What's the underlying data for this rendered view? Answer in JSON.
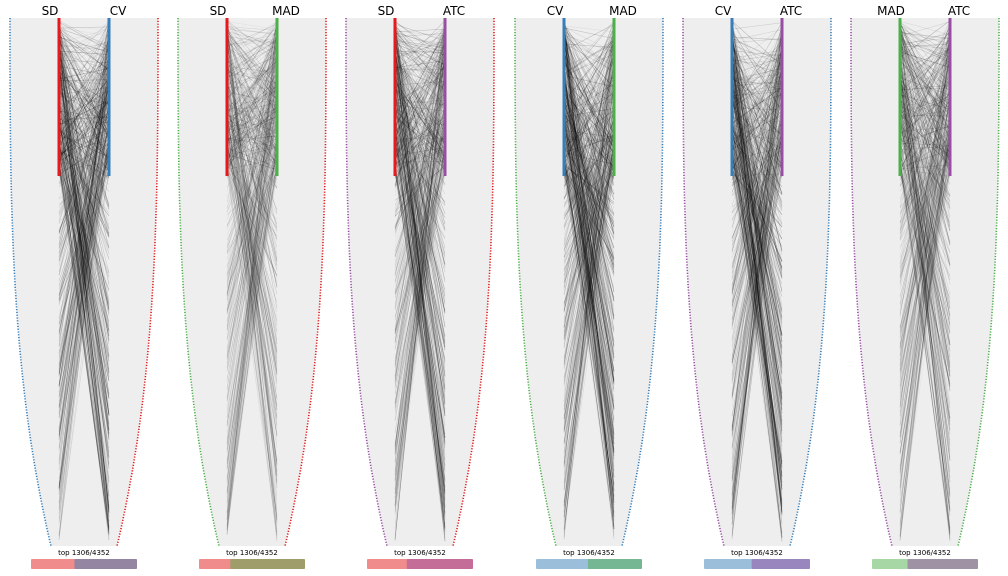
{
  "colors": {
    "SD": "#e41a1c",
    "CV": "#377eb8",
    "MAD": "#4daf4a",
    "ATC": "#984ea3",
    "background_shape": "#eeeeee",
    "lines": "#000000"
  },
  "chart_data": [
    {
      "type": "parallel-rank",
      "left": "SD",
      "right": "CV",
      "selection_label": "top 1306/4352",
      "top_n": 1306,
      "total": 4352,
      "line_intensity": 0.95,
      "overlap_fraction": 0.18
    },
    {
      "type": "parallel-rank",
      "left": "SD",
      "right": "MAD",
      "selection_label": "top 1306/4352",
      "top_n": 1306,
      "total": 4352,
      "line_intensity": 0.55,
      "overlap_fraction": 0.41
    },
    {
      "type": "parallel-rank",
      "left": "SD",
      "right": "ATC",
      "selection_label": "top 1306/4352",
      "top_n": 1306,
      "total": 4352,
      "line_intensity": 0.8,
      "overlap_fraction": 0.25
    },
    {
      "type": "parallel-rank",
      "left": "CV",
      "right": "MAD",
      "selection_label": "top 1306/4352",
      "top_n": 1306,
      "total": 4352,
      "line_intensity": 1.0,
      "overlap_fraction": 0.02
    },
    {
      "type": "parallel-rank",
      "left": "CV",
      "right": "ATC",
      "selection_label": "top 1306/4352",
      "top_n": 1306,
      "total": 4352,
      "line_intensity": 0.95,
      "overlap_fraction": 0.1
    },
    {
      "type": "parallel-rank",
      "left": "MAD",
      "right": "ATC",
      "selection_label": "top 1306/4352",
      "top_n": 1306,
      "total": 4352,
      "line_intensity": 0.7,
      "overlap_fraction": 0.33
    }
  ]
}
